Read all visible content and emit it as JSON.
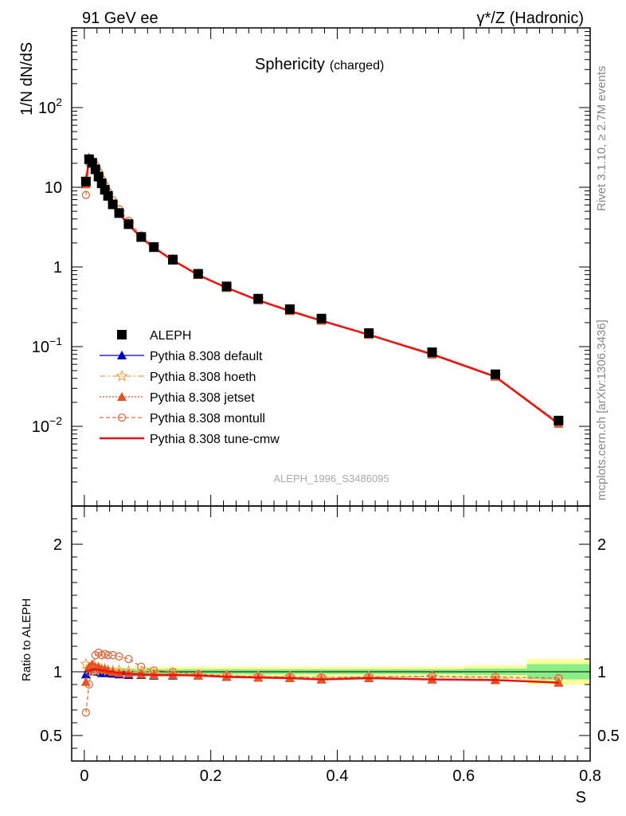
{
  "header": {
    "left": "91 GeV ee",
    "right": "γ*/Z (Hadronic)"
  },
  "side_labels": {
    "rivet": "Rivet 3.1.10, ≥ 2.7M events",
    "mcplots": "mcplots.cern.ch [arXiv:1306.3436]"
  },
  "colors": {
    "data": "#000000",
    "default": "#0000cc",
    "hoeth": "#e8a85a",
    "jetset": "#e8501a",
    "montull": "#e06a3a",
    "tune_cmw": "#ee1111",
    "band_outer": "#ffff99",
    "band_inner": "#88ee88"
  },
  "chart_data": [
    {
      "type": "line",
      "title": "Sphericity",
      "title_suffix": "(charged)",
      "ylabel": "1/N dN/dS",
      "watermark": "ALEPH_1996_S3486095",
      "yscale": "log",
      "ylim": [
        0.001,
        1000
      ],
      "xlim": [
        -0.02,
        0.8
      ],
      "ytick_labels": [
        {
          "value": 0.01,
          "base": "10",
          "exp": "−2"
        },
        {
          "value": 0.1,
          "base": "10",
          "exp": "−1"
        },
        {
          "value": 1,
          "base": "1",
          "exp": ""
        },
        {
          "value": 10,
          "base": "10",
          "exp": ""
        },
        {
          "value": 100,
          "base": "10",
          "exp": "2"
        }
      ],
      "legend": [
        {
          "key": "data",
          "label": "ALEPH"
        },
        {
          "key": "default",
          "label": "Pythia 8.308 default"
        },
        {
          "key": "hoeth",
          "label": "Pythia 8.308 hoeth"
        },
        {
          "key": "jetset",
          "label": "Pythia 8.308 jetset"
        },
        {
          "key": "montull",
          "label": "Pythia 8.308 montull"
        },
        {
          "key": "tune_cmw",
          "label": "Pythia 8.308 tune-cmw"
        }
      ],
      "x": [
        0.0025,
        0.0075,
        0.0125,
        0.0175,
        0.0225,
        0.0275,
        0.0325,
        0.0375,
        0.045,
        0.055,
        0.07,
        0.09,
        0.11,
        0.14,
        0.18,
        0.225,
        0.275,
        0.325,
        0.375,
        0.45,
        0.55,
        0.65,
        0.75
      ],
      "data": [
        11.8,
        22.5,
        20.3,
        16.8,
        13.6,
        11.2,
        9.3,
        7.8,
        6.1,
        4.75,
        3.45,
        2.38,
        1.78,
        1.24,
        0.82,
        0.57,
        0.4,
        0.295,
        0.225,
        0.148,
        0.085,
        0.045,
        0.0118
      ],
      "series": {
        "default": [
          11.6,
          22.6,
          20.4,
          16.9,
          13.6,
          11.1,
          9.2,
          7.7,
          6.0,
          4.65,
          3.37,
          2.32,
          1.73,
          1.2,
          0.795,
          0.547,
          0.382,
          0.28,
          0.212,
          0.141,
          0.08,
          0.042,
          0.0108
        ],
        "hoeth": [
          12.5,
          23.0,
          20.6,
          17.0,
          13.9,
          11.4,
          9.5,
          7.9,
          6.2,
          4.8,
          3.47,
          2.36,
          1.76,
          1.24,
          0.81,
          0.56,
          0.39,
          0.288,
          0.216,
          0.144,
          0.082,
          0.043,
          0.011
        ],
        "jetset": [
          10.9,
          23.4,
          21.5,
          17.4,
          14.1,
          11.4,
          9.5,
          7.9,
          6.1,
          4.71,
          3.4,
          2.33,
          1.74,
          1.21,
          0.795,
          0.548,
          0.383,
          0.28,
          0.212,
          0.141,
          0.08,
          0.042,
          0.0108
        ],
        "montull": [
          8.0,
          20.3,
          20.8,
          19.0,
          15.7,
          12.7,
          10.6,
          8.8,
          6.9,
          5.3,
          3.8,
          2.48,
          1.8,
          1.24,
          0.8,
          0.55,
          0.384,
          0.283,
          0.215,
          0.142,
          0.082,
          0.043,
          0.0112
        ],
        "tune_cmw": [
          11.8,
          22.8,
          20.6,
          17.1,
          13.8,
          11.3,
          9.4,
          7.8,
          6.1,
          4.7,
          3.4,
          2.33,
          1.74,
          1.21,
          0.795,
          0.548,
          0.382,
          0.28,
          0.212,
          0.141,
          0.08,
          0.042,
          0.0108
        ]
      }
    },
    {
      "type": "line",
      "title": "",
      "ylabel": "Ratio to ALEPH",
      "xlabel": "S",
      "yscale": "linear",
      "ylim": [
        0.3,
        2.3
      ],
      "xlim": [
        -0.02,
        0.8
      ],
      "yticks": [
        0.5,
        1,
        2
      ],
      "ytick_labels": [
        "0.5",
        "1",
        "2"
      ],
      "xticks": [
        0,
        0.2,
        0.4,
        0.6,
        0.8
      ],
      "xtick_labels": [
        "0",
        "0.2",
        "0.4",
        "0.6",
        "0.8"
      ],
      "bins": [
        [
          0,
          0.005
        ],
        [
          0.005,
          0.01
        ],
        [
          0.01,
          0.015
        ],
        [
          0.015,
          0.02
        ],
        [
          0.02,
          0.025
        ],
        [
          0.025,
          0.03
        ],
        [
          0.03,
          0.035
        ],
        [
          0.035,
          0.04
        ],
        [
          0.04,
          0.05
        ],
        [
          0.05,
          0.06
        ],
        [
          0.06,
          0.08
        ],
        [
          0.08,
          0.1
        ],
        [
          0.1,
          0.12
        ],
        [
          0.12,
          0.16
        ],
        [
          0.16,
          0.2
        ],
        [
          0.2,
          0.25
        ],
        [
          0.25,
          0.3
        ],
        [
          0.3,
          0.35
        ],
        [
          0.35,
          0.4
        ],
        [
          0.4,
          0.5
        ],
        [
          0.5,
          0.6
        ],
        [
          0.6,
          0.7
        ],
        [
          0.7,
          0.8
        ]
      ],
      "band_inner": [
        0.02,
        0.02,
        0.02,
        0.02,
        0.02,
        0.02,
        0.02,
        0.02,
        0.02,
        0.02,
        0.02,
        0.02,
        0.02,
        0.02,
        0.02,
        0.02,
        0.02,
        0.02,
        0.02,
        0.02,
        0.02,
        0.025,
        0.06
      ],
      "band_outer": [
        0.03,
        0.03,
        0.03,
        0.03,
        0.03,
        0.03,
        0.03,
        0.03,
        0.035,
        0.035,
        0.035,
        0.04,
        0.04,
        0.04,
        0.04,
        0.04,
        0.04,
        0.04,
        0.04,
        0.04,
        0.04,
        0.05,
        0.1
      ],
      "x": [
        0.0025,
        0.0075,
        0.0125,
        0.0175,
        0.0225,
        0.0275,
        0.0325,
        0.0375,
        0.045,
        0.055,
        0.07,
        0.09,
        0.11,
        0.14,
        0.18,
        0.225,
        0.275,
        0.325,
        0.375,
        0.45,
        0.55,
        0.65,
        0.75
      ],
      "series": {
        "default": [
          0.98,
          1.005,
          1.005,
          1.005,
          1.0,
          0.99,
          0.99,
          0.99,
          0.985,
          0.98,
          0.975,
          0.975,
          0.97,
          0.97,
          0.97,
          0.96,
          0.955,
          0.95,
          0.94,
          0.95,
          0.94,
          0.935,
          0.915
        ],
        "hoeth": [
          1.06,
          1.02,
          1.01,
          1.01,
          1.02,
          1.02,
          1.02,
          1.01,
          1.01,
          1.01,
          1.005,
          0.99,
          0.985,
          0.98,
          0.975,
          0.97,
          0.965,
          0.96,
          0.955,
          0.96,
          0.96,
          0.95,
          0.94
        ],
        "jetset": [
          0.92,
          1.04,
          1.06,
          1.04,
          1.04,
          1.02,
          1.02,
          1.01,
          1.0,
          0.99,
          0.985,
          0.98,
          0.975,
          0.975,
          0.97,
          0.96,
          0.955,
          0.95,
          0.94,
          0.95,
          0.94,
          0.935,
          0.915
        ],
        "montull": [
          0.68,
          0.9,
          1.02,
          1.13,
          1.15,
          1.13,
          1.14,
          1.13,
          1.13,
          1.12,
          1.1,
          1.04,
          1.01,
          1.0,
          0.98,
          0.97,
          0.96,
          0.96,
          0.955,
          0.96,
          0.965,
          0.96,
          0.95
        ],
        "tune_cmw": [
          1.0,
          1.01,
          1.015,
          1.02,
          1.015,
          1.01,
          1.01,
          1.0,
          1.0,
          0.99,
          0.985,
          0.98,
          0.975,
          0.975,
          0.97,
          0.96,
          0.955,
          0.95,
          0.94,
          0.95,
          0.94,
          0.935,
          0.915
        ]
      }
    }
  ]
}
